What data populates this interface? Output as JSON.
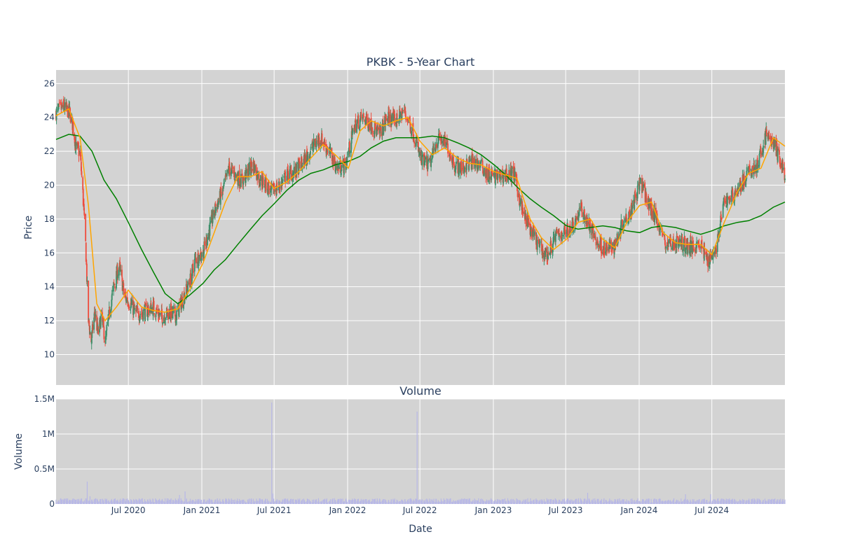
{
  "chart_data": [
    {
      "type": "candlestick",
      "title": "PKBK - 5-Year Chart",
      "xlabel": "",
      "ylabel": "Price",
      "ylim": [
        8.2,
        26.8
      ],
      "xlim": [
        "2020-01-02",
        "2024-12-31"
      ],
      "yticks": [
        10,
        12,
        14,
        16,
        18,
        20,
        22,
        24,
        26
      ],
      "grid": true,
      "colors": {
        "background": "#d3d3d3",
        "grid": "#ffffff",
        "increasing": "#3d8f6a",
        "decreasing": "#ef4b3c",
        "ma_short": "#ffa500",
        "ma_long": "#008000"
      },
      "close_points": [
        [
          "2020-01-02",
          24.3
        ],
        [
          "2020-01-20",
          24.6
        ],
        [
          "2020-02-05",
          24.3
        ],
        [
          "2020-02-14",
          23.4
        ],
        [
          "2020-02-21",
          22.2
        ],
        [
          "2020-03-02",
          21.9
        ],
        [
          "2020-03-09",
          19.5
        ],
        [
          "2020-03-16",
          16.5
        ],
        [
          "2020-03-23",
          12.0
        ],
        [
          "2020-03-30",
          10.8
        ],
        [
          "2020-04-08",
          12.5
        ],
        [
          "2020-04-16",
          11.2
        ],
        [
          "2020-04-24",
          12.2
        ],
        [
          "2020-05-05",
          10.8
        ],
        [
          "2020-05-14",
          12.4
        ],
        [
          "2020-05-25",
          14.0
        ],
        [
          "2020-06-08",
          15.2
        ],
        [
          "2020-06-22",
          13.4
        ],
        [
          "2020-07-06",
          13.0
        ],
        [
          "2020-07-20",
          12.4
        ],
        [
          "2020-08-10",
          12.5
        ],
        [
          "2020-09-01",
          12.8
        ],
        [
          "2020-09-21",
          12.2
        ],
        [
          "2020-10-12",
          12.5
        ],
        [
          "2020-10-29",
          12.3
        ],
        [
          "2020-11-16",
          13.4
        ],
        [
          "2020-12-01",
          14.2
        ],
        [
          "2020-12-15",
          15.6
        ],
        [
          "2021-01-04",
          16.0
        ],
        [
          "2021-01-20",
          17.4
        ],
        [
          "2021-02-05",
          18.7
        ],
        [
          "2021-02-22",
          19.6
        ],
        [
          "2021-03-10",
          21.0
        ],
        [
          "2021-03-25",
          20.6
        ],
        [
          "2021-04-12",
          20.2
        ],
        [
          "2021-04-26",
          20.8
        ],
        [
          "2021-05-10",
          21.2
        ],
        [
          "2021-05-24",
          20.4
        ],
        [
          "2021-06-09",
          20.1
        ],
        [
          "2021-06-23",
          19.6
        ],
        [
          "2021-07-12",
          19.9
        ],
        [
          "2021-08-02",
          20.6
        ],
        [
          "2021-08-23",
          20.8
        ],
        [
          "2021-09-13",
          21.4
        ],
        [
          "2021-10-04",
          22.2
        ],
        [
          "2021-10-25",
          22.8
        ],
        [
          "2021-11-15",
          22.0
        ],
        [
          "2021-12-06",
          21.0
        ],
        [
          "2021-12-27",
          21.2
        ],
        [
          "2022-01-18",
          23.5
        ],
        [
          "2022-02-07",
          24.0
        ],
        [
          "2022-02-28",
          23.6
        ],
        [
          "2022-03-21",
          23.0
        ],
        [
          "2022-04-11",
          24.0
        ],
        [
          "2022-05-02",
          23.8
        ],
        [
          "2022-05-23",
          24.4
        ],
        [
          "2022-06-13",
          23.2
        ],
        [
          "2022-07-05",
          21.4
        ],
        [
          "2022-07-25",
          21.2
        ],
        [
          "2022-08-15",
          22.8
        ],
        [
          "2022-09-06",
          22.4
        ],
        [
          "2022-09-26",
          21.2
        ],
        [
          "2022-10-17",
          21.0
        ],
        [
          "2022-11-07",
          21.4
        ],
        [
          "2022-11-28",
          21.2
        ],
        [
          "2022-12-19",
          20.6
        ],
        [
          "2023-01-10",
          20.5
        ],
        [
          "2023-01-31",
          20.6
        ],
        [
          "2023-02-21",
          20.7
        ],
        [
          "2023-03-14",
          18.5
        ],
        [
          "2023-04-04",
          17.4
        ],
        [
          "2023-04-25",
          16.4
        ],
        [
          "2023-05-16",
          15.8
        ],
        [
          "2023-06-06",
          17.0
        ],
        [
          "2023-06-27",
          17.2
        ],
        [
          "2023-07-18",
          17.6
        ],
        [
          "2023-08-08",
          18.6
        ],
        [
          "2023-08-29",
          17.6
        ],
        [
          "2023-09-19",
          16.6
        ],
        [
          "2023-10-10",
          16.2
        ],
        [
          "2023-10-31",
          16.4
        ],
        [
          "2023-11-21",
          17.8
        ],
        [
          "2023-12-12",
          18.6
        ],
        [
          "2024-01-04",
          20.2
        ],
        [
          "2024-01-25",
          18.8
        ],
        [
          "2024-02-15",
          18.0
        ],
        [
          "2024-03-07",
          16.5
        ],
        [
          "2024-03-28",
          16.6
        ],
        [
          "2024-04-18",
          16.6
        ],
        [
          "2024-05-09",
          16.3
        ],
        [
          "2024-05-30",
          16.6
        ],
        [
          "2024-06-20",
          15.6
        ],
        [
          "2024-07-11",
          16.2
        ],
        [
          "2024-08-01",
          19.0
        ],
        [
          "2024-08-22",
          19.4
        ],
        [
          "2024-09-12",
          20.0
        ],
        [
          "2024-10-03",
          20.8
        ],
        [
          "2024-10-24",
          21.2
        ],
        [
          "2024-11-14",
          23.0
        ],
        [
          "2024-12-05",
          22.4
        ],
        [
          "2024-12-31",
          20.6
        ]
      ],
      "series": [
        {
          "name": "",
          "style": "ma_short",
          "points": [
            [
              "2020-01-02",
              24.1
            ],
            [
              "2020-02-03",
              24.5
            ],
            [
              "2020-03-02",
              22.8
            ],
            [
              "2020-03-23",
              18.8
            ],
            [
              "2020-04-13",
              13.0
            ],
            [
              "2020-05-04",
              12.0
            ],
            [
              "2020-06-01",
              12.8
            ],
            [
              "2020-07-01",
              13.8
            ],
            [
              "2020-08-03",
              12.8
            ],
            [
              "2020-09-01",
              12.6
            ],
            [
              "2020-10-01",
              12.5
            ],
            [
              "2020-11-02",
              12.7
            ],
            [
              "2020-12-01",
              13.8
            ],
            [
              "2021-01-04",
              15.4
            ],
            [
              "2021-02-01",
              17.2
            ],
            [
              "2021-03-01",
              19.0
            ],
            [
              "2021-04-01",
              20.5
            ],
            [
              "2021-05-03",
              20.5
            ],
            [
              "2021-06-01",
              20.8
            ],
            [
              "2021-07-01",
              19.8
            ],
            [
              "2021-08-02",
              20.2
            ],
            [
              "2021-09-01",
              20.8
            ],
            [
              "2021-10-01",
              21.6
            ],
            [
              "2021-11-01",
              22.4
            ],
            [
              "2021-12-01",
              21.8
            ],
            [
              "2022-01-03",
              21.0
            ],
            [
              "2022-02-01",
              23.2
            ],
            [
              "2022-03-01",
              23.8
            ],
            [
              "2022-04-01",
              23.5
            ],
            [
              "2022-05-02",
              23.8
            ],
            [
              "2022-06-01",
              24.0
            ],
            [
              "2022-07-01",
              22.6
            ],
            [
              "2022-08-01",
              21.8
            ],
            [
              "2022-09-01",
              22.2
            ],
            [
              "2022-10-03",
              21.6
            ],
            [
              "2022-11-01",
              21.3
            ],
            [
              "2022-12-01",
              21.2
            ],
            [
              "2023-01-03",
              20.8
            ],
            [
              "2023-02-01",
              20.6
            ],
            [
              "2023-03-01",
              20.4
            ],
            [
              "2023-04-03",
              18.0
            ],
            [
              "2023-05-01",
              16.9
            ],
            [
              "2023-06-01",
              16.2
            ],
            [
              "2023-07-03",
              16.8
            ],
            [
              "2023-08-01",
              17.8
            ],
            [
              "2023-09-01",
              18.0
            ],
            [
              "2023-10-02",
              16.8
            ],
            [
              "2023-11-01",
              16.3
            ],
            [
              "2023-12-01",
              17.8
            ],
            [
              "2024-01-02",
              18.8
            ],
            [
              "2024-02-01",
              19.0
            ],
            [
              "2024-03-01",
              17.2
            ],
            [
              "2024-04-01",
              16.6
            ],
            [
              "2024-05-01",
              16.5
            ],
            [
              "2024-06-03",
              16.5
            ],
            [
              "2024-07-01",
              15.9
            ],
            [
              "2024-08-01",
              17.8
            ],
            [
              "2024-09-03",
              19.6
            ],
            [
              "2024-10-01",
              20.7
            ],
            [
              "2024-11-01",
              21.0
            ],
            [
              "2024-12-02",
              22.8
            ],
            [
              "2024-12-31",
              22.3
            ]
          ]
        },
        {
          "name": "",
          "style": "ma_long",
          "points": [
            [
              "2020-01-02",
              22.7
            ],
            [
              "2020-02-03",
              23.0
            ],
            [
              "2020-03-02",
              22.9
            ],
            [
              "2020-04-01",
              22.0
            ],
            [
              "2020-05-01",
              20.3
            ],
            [
              "2020-06-01",
              19.2
            ],
            [
              "2020-07-01",
              17.8
            ],
            [
              "2020-08-03",
              16.2
            ],
            [
              "2020-09-01",
              14.9
            ],
            [
              "2020-10-01",
              13.6
            ],
            [
              "2020-11-02",
              13.0
            ],
            [
              "2020-12-01",
              13.5
            ],
            [
              "2021-01-04",
              14.2
            ],
            [
              "2021-02-01",
              15.0
            ],
            [
              "2021-03-01",
              15.6
            ],
            [
              "2021-04-01",
              16.5
            ],
            [
              "2021-05-03",
              17.4
            ],
            [
              "2021-06-01",
              18.2
            ],
            [
              "2021-07-01",
              18.9
            ],
            [
              "2021-08-02",
              19.7
            ],
            [
              "2021-09-01",
              20.3
            ],
            [
              "2021-10-01",
              20.7
            ],
            [
              "2021-11-01",
              20.9
            ],
            [
              "2021-12-01",
              21.2
            ],
            [
              "2022-01-03",
              21.4
            ],
            [
              "2022-02-01",
              21.7
            ],
            [
              "2022-03-01",
              22.2
            ],
            [
              "2022-04-01",
              22.6
            ],
            [
              "2022-05-02",
              22.8
            ],
            [
              "2022-06-01",
              22.8
            ],
            [
              "2022-07-01",
              22.8
            ],
            [
              "2022-08-01",
              22.9
            ],
            [
              "2022-09-01",
              22.8
            ],
            [
              "2022-10-03",
              22.5
            ],
            [
              "2022-11-01",
              22.2
            ],
            [
              "2022-12-01",
              21.8
            ],
            [
              "2023-01-03",
              21.2
            ],
            [
              "2023-02-01",
              20.6
            ],
            [
              "2023-03-01",
              19.9
            ],
            [
              "2023-04-03",
              19.2
            ],
            [
              "2023-05-01",
              18.7
            ],
            [
              "2023-06-01",
              18.2
            ],
            [
              "2023-07-03",
              17.6
            ],
            [
              "2023-08-01",
              17.4
            ],
            [
              "2023-09-01",
              17.5
            ],
            [
              "2023-10-02",
              17.6
            ],
            [
              "2023-11-01",
              17.5
            ],
            [
              "2023-12-01",
              17.3
            ],
            [
              "2024-01-02",
              17.2
            ],
            [
              "2024-02-01",
              17.5
            ],
            [
              "2024-03-01",
              17.6
            ],
            [
              "2024-04-01",
              17.5
            ],
            [
              "2024-05-01",
              17.3
            ],
            [
              "2024-06-03",
              17.1
            ],
            [
              "2024-07-01",
              17.3
            ],
            [
              "2024-08-01",
              17.6
            ],
            [
              "2024-09-03",
              17.8
            ],
            [
              "2024-10-01",
              17.9
            ],
            [
              "2024-11-01",
              18.2
            ],
            [
              "2024-12-02",
              18.7
            ],
            [
              "2024-12-31",
              19.0
            ]
          ]
        }
      ]
    },
    {
      "type": "bar",
      "title": "Volume",
      "xlabel": "Date",
      "ylabel": "Volume",
      "ylim": [
        0,
        1500000
      ],
      "yticks": [
        0,
        500000,
        1000000,
        1500000
      ],
      "ytick_labels": [
        "0",
        "0.5M",
        "1M",
        "1.5M"
      ],
      "xticks": [
        "2020-07-01",
        "2021-01-01",
        "2021-07-01",
        "2022-01-01",
        "2022-07-01",
        "2023-01-01",
        "2023-07-01",
        "2024-01-01",
        "2024-07-01"
      ],
      "xtick_labels": [
        "Jul 2020",
        "Jan 2021",
        "Jul 2021",
        "Jan 2022",
        "Jul 2022",
        "Jan 2023",
        "Jul 2023",
        "Jan 2024",
        "Jul 2024"
      ],
      "grid": true,
      "colors": {
        "bar": "#b8b8e6"
      },
      "baseline_volume": 55000,
      "spikes": [
        [
          "2020-03-20",
          320000
        ],
        [
          "2020-03-27",
          110000
        ],
        [
          "2020-11-06",
          130000
        ],
        [
          "2020-11-20",
          180000
        ],
        [
          "2021-06-25",
          1450000
        ],
        [
          "2021-06-28",
          150000
        ],
        [
          "2022-06-24",
          1320000
        ],
        [
          "2023-08-25",
          160000
        ],
        [
          "2024-04-26",
          140000
        ],
        [
          "2024-06-28",
          140000
        ]
      ]
    }
  ]
}
